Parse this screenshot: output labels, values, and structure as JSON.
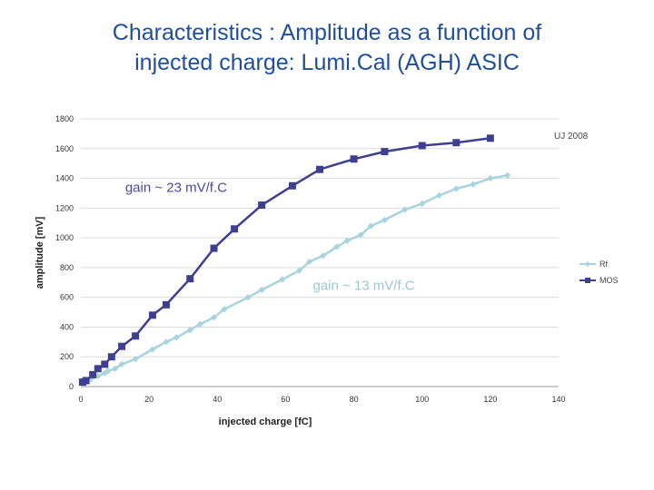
{
  "slide": {
    "title_line1": "Characteristics : Amplitude as a function of",
    "title_line2": "injected charge: Lumi.Cal (AGH) ASIC"
  },
  "chart_data": {
    "type": "line",
    "title": "Characteristics : Amplitude as a function of injected charge: Lumi.Cal (AGH) ASIC",
    "xlabel": "injected charge [fC]",
    "ylabel": "amplitude [mV]",
    "xlim": [
      0,
      140
    ],
    "ylim": [
      0,
      1800
    ],
    "x_ticks": [
      0,
      20,
      40,
      60,
      80,
      100,
      120,
      140
    ],
    "y_ticks": [
      0,
      200,
      400,
      600,
      800,
      1000,
      1200,
      1400,
      1600,
      1800
    ],
    "grid": true,
    "legend_position": "right",
    "stamp": "UJ 2008",
    "annotations": [
      {
        "text": "gain ~ 23 mV/f.C",
        "x": 13,
        "y": 1310,
        "color": "#4a4a9a"
      },
      {
        "text": "gain ~ 13 mV/f.C",
        "x": 68,
        "y": 650,
        "color": "#9fc6d2"
      }
    ],
    "series": [
      {
        "name": "Rf",
        "color": "#a8d4de",
        "marker": "diamond",
        "x": [
          1,
          3,
          5,
          7,
          8,
          10,
          12,
          16,
          21,
          25,
          28,
          32,
          35,
          39,
          42,
          49,
          53,
          59,
          64,
          67,
          71,
          75,
          78,
          82,
          85,
          89,
          95,
          100,
          105,
          110,
          115,
          120,
          125
        ],
        "y": [
          20,
          50,
          70,
          90,
          105,
          120,
          150,
          185,
          250,
          300,
          330,
          380,
          420,
          465,
          520,
          600,
          650,
          720,
          780,
          840,
          880,
          940,
          980,
          1020,
          1080,
          1120,
          1190,
          1230,
          1285,
          1330,
          1360,
          1400,
          1420
        ]
      },
      {
        "name": "MOS",
        "color": "#3f3f91",
        "marker": "square",
        "x": [
          0.5,
          1.5,
          3.5,
          5,
          7,
          9,
          12,
          16,
          21,
          25,
          32,
          39,
          45,
          53,
          62,
          70,
          80,
          89,
          100,
          110,
          120
        ],
        "y": [
          30,
          40,
          80,
          120,
          150,
          200,
          270,
          340,
          480,
          550,
          725,
          930,
          1060,
          1220,
          1350,
          1460,
          1530,
          1580,
          1620,
          1640,
          1670
        ]
      }
    ]
  }
}
